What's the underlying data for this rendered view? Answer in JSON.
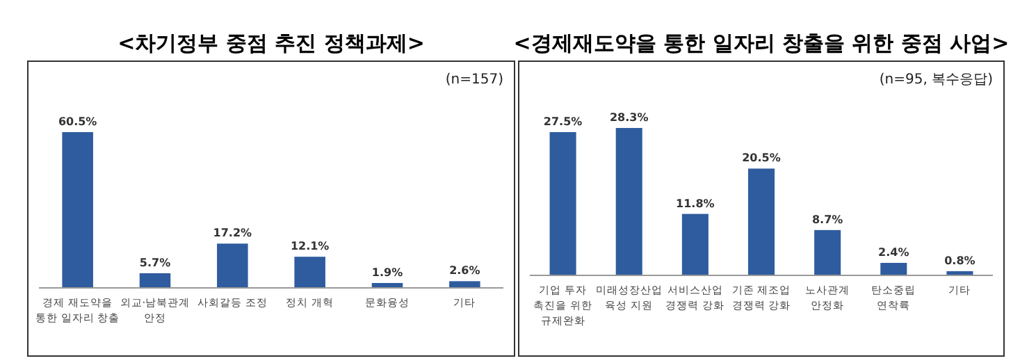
{
  "chart_data": [
    {
      "type": "bar",
      "title": "<차기정부 중점 추진 정책과제>",
      "annotations": [
        "(n=157)"
      ],
      "categories": [
        "경제 재도약을\n통한 일자리 창출",
        "외교·남북관계\n안정",
        "사회갈등 조정",
        "정치 개혁",
        "문화융성",
        "기타"
      ],
      "values": [
        60.5,
        5.7,
        17.2,
        12.1,
        1.9,
        2.6
      ],
      "value_labels": [
        "60.5%",
        "5.7%",
        "17.2%",
        "12.1%",
        "1.9%",
        "2.6%"
      ],
      "color": "#2e5c9e"
    },
    {
      "type": "bar",
      "title": "<경제재도약을 통한 일자리 창출을 위한 중점 사업>",
      "annotations": [
        "(n=95, 복수응답)"
      ],
      "categories": [
        "기업 투자\n촉진을 위한\n규제완화",
        "미래성장산업\n육성 지원",
        "서비스산업\n경쟁력 강화",
        "기존 제조업\n경쟁력 강화",
        "노사관계\n안정화",
        "탄소중립\n연착륙",
        "기타"
      ],
      "values": [
        27.5,
        28.3,
        11.8,
        20.5,
        8.7,
        2.4,
        0.8
      ],
      "value_labels": [
        "27.5%",
        "28.3%",
        "11.8%",
        "20.5%",
        "8.7%",
        "2.4%",
        "0.8%"
      ],
      "color": "#2e5c9e"
    }
  ]
}
